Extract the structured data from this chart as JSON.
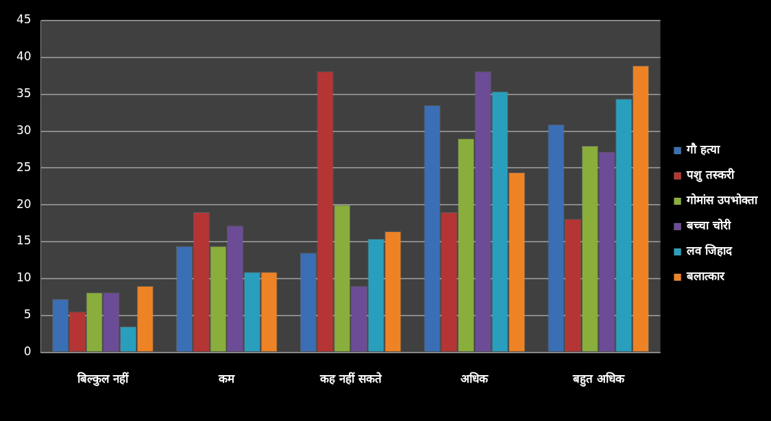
{
  "chart_data": {
    "type": "bar",
    "categories": [
      "बिल्कुल नहीं",
      "कम",
      "कह नहीं सकते",
      "अधिक",
      "बहुत अधिक"
    ],
    "series": [
      {
        "name": "गौ हत्या",
        "color": "#3a6fb5",
        "values": [
          7.2,
          14.4,
          13.5,
          33.5,
          30.9
        ]
      },
      {
        "name": "पशु तस्करी",
        "color": "#b53535",
        "values": [
          5.5,
          19.0,
          38.1,
          19.0,
          18.1
        ]
      },
      {
        "name": "गोमांस उपभोक्ता",
        "color": "#8aae3c",
        "values": [
          8.1,
          14.4,
          20.0,
          29.0,
          28.0
        ]
      },
      {
        "name": "बच्चा चोरी",
        "color": "#6c4c96",
        "values": [
          8.1,
          17.2,
          9.0,
          38.1,
          27.2
        ]
      },
      {
        "name": "लव जिहाद",
        "color": "#2a9fbd",
        "values": [
          3.5,
          10.9,
          15.4,
          35.4,
          34.4
        ]
      },
      {
        "name": "बलात्कार",
        "color": "#ee8325",
        "values": [
          9.0,
          10.9,
          16.4,
          24.4,
          38.9
        ]
      }
    ],
    "ylim": [
      0,
      45
    ],
    "yticks": [
      0,
      5,
      10,
      15,
      20,
      25,
      30,
      35,
      40,
      45
    ],
    "grid": "y",
    "legend": "right"
  }
}
